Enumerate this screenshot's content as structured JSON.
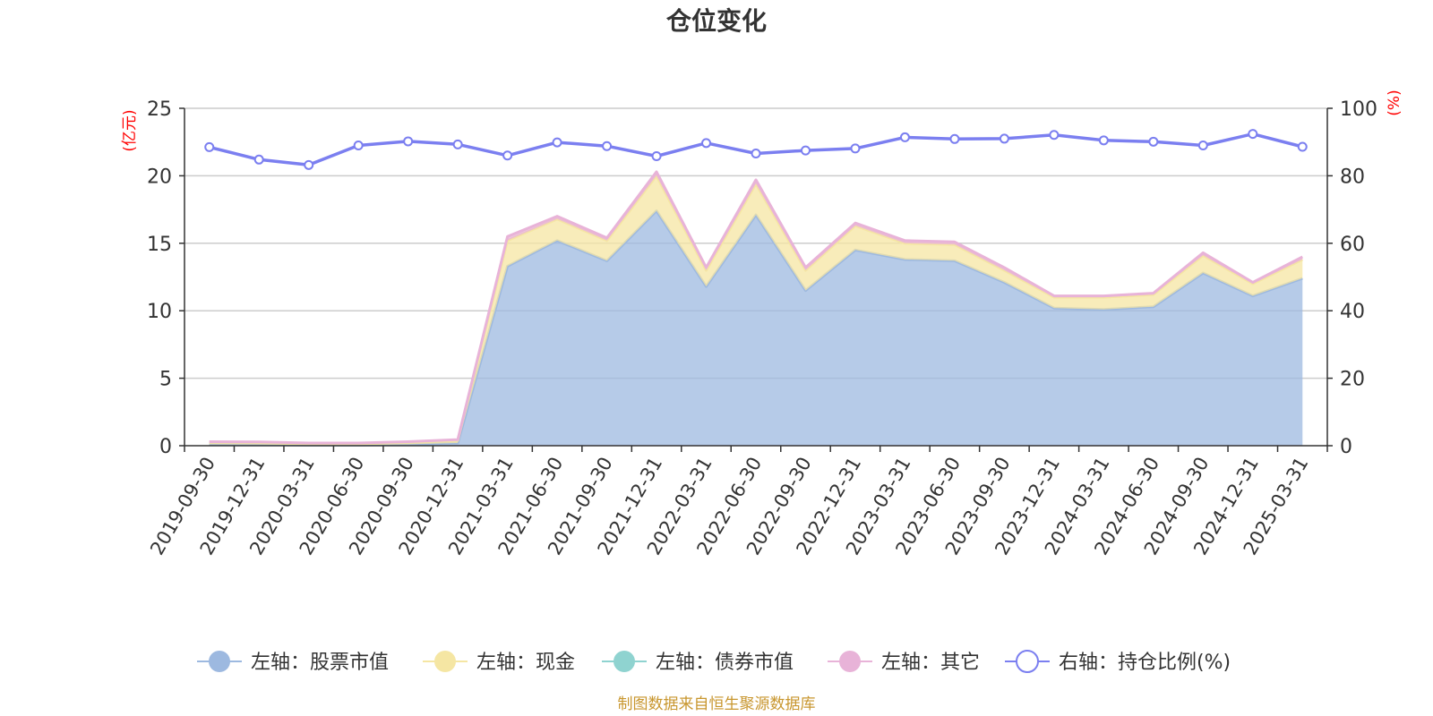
{
  "chart_data": {
    "type": "area",
    "title": "仓位变化",
    "left_axis_unit": "(亿元)",
    "right_axis_unit": "(%)",
    "categories": [
      "2019-09-30",
      "2019-12-31",
      "2020-03-31",
      "2020-06-30",
      "2020-09-30",
      "2020-12-31",
      "2021-03-31",
      "2021-06-30",
      "2021-09-30",
      "2021-12-31",
      "2022-03-31",
      "2022-06-30",
      "2022-09-30",
      "2022-12-31",
      "2023-03-31",
      "2023-06-30",
      "2023-09-30",
      "2023-12-31",
      "2024-03-31",
      "2024-06-30",
      "2024-09-30",
      "2024-12-31",
      "2025-03-31"
    ],
    "left_ylim": [
      0,
      25
    ],
    "left_ticks": [
      "0",
      "5",
      "10",
      "15",
      "20",
      "25"
    ],
    "right_ylim": [
      0,
      100
    ],
    "right_ticks": [
      "0",
      "20",
      "40",
      "60",
      "80",
      "100"
    ],
    "grid": true,
    "stacked": true,
    "series": [
      {
        "name": "左轴：股票市值",
        "axis": "left",
        "type": "area",
        "color": "#9db9e0",
        "values": [
          0.1,
          0.08,
          0.05,
          0.05,
          0.1,
          0.2,
          13.3,
          15.2,
          13.7,
          17.4,
          11.8,
          17.1,
          11.5,
          14.5,
          13.8,
          13.7,
          12.1,
          10.2,
          10.1,
          10.3,
          12.8,
          11.1,
          12.4
        ]
      },
      {
        "name": "左轴：现金",
        "axis": "left",
        "type": "area",
        "color": "#f5e6a3",
        "values": [
          0.15,
          0.15,
          0.1,
          0.1,
          0.15,
          0.2,
          1.9,
          1.6,
          1.5,
          2.6,
          1.2,
          2.3,
          1.5,
          1.8,
          1.2,
          1.2,
          0.9,
          0.8,
          0.9,
          0.9,
          1.3,
          0.9,
          1.4
        ]
      },
      {
        "name": "左轴：债券市值",
        "axis": "left",
        "type": "area",
        "color": "#8fd3d0",
        "values": [
          0,
          0,
          0,
          0,
          0,
          0,
          0,
          0,
          0,
          0,
          0,
          0,
          0,
          0,
          0,
          0,
          0,
          0,
          0,
          0,
          0,
          0,
          0
        ]
      },
      {
        "name": "左轴：其它",
        "axis": "left",
        "type": "area",
        "color": "#e8b3d8",
        "values": [
          0.05,
          0.05,
          0.05,
          0.05,
          0.05,
          0.05,
          0.3,
          0.2,
          0.2,
          0.3,
          0.2,
          0.3,
          0.2,
          0.2,
          0.2,
          0.2,
          0.2,
          0.1,
          0.1,
          0.1,
          0.2,
          0.1,
          0.2
        ]
      },
      {
        "name": "右轴：持仓比例(%)",
        "axis": "right",
        "type": "line",
        "color": "#7b7ff0",
        "values": [
          88.5,
          84.8,
          83.2,
          89.0,
          90.2,
          89.3,
          86.0,
          89.9,
          88.8,
          85.8,
          89.7,
          86.6,
          87.5,
          88.1,
          91.4,
          90.9,
          91.0,
          92.1,
          90.5,
          90.1,
          89.0,
          92.4,
          88.6
        ]
      }
    ],
    "legend": {
      "position": "bottom"
    }
  },
  "source": "制图数据来自恒生聚源数据库",
  "colors": {
    "axis": "#333333",
    "grid": "#cccccc",
    "unit": "#ff0000",
    "source": "#c8962e"
  }
}
